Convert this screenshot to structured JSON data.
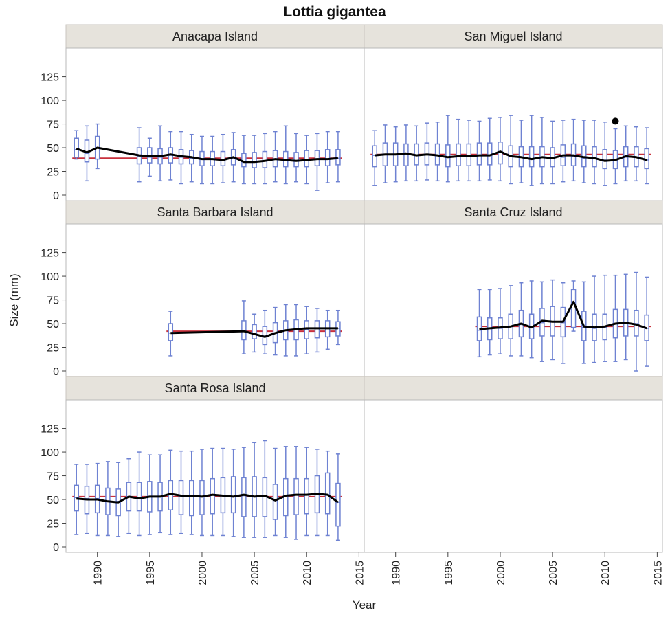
{
  "chart_data": {
    "type": "box",
    "title": "Lottia gigantea",
    "xlabel": "Year",
    "ylabel": "Size (mm)",
    "xlim": [
      1987,
      2015.5
    ],
    "ylim": [
      0,
      145
    ],
    "x_ticks": [
      1990,
      1995,
      2000,
      2005,
      2010,
      2015
    ],
    "y_ticks": [
      0,
      25,
      50,
      75,
      100,
      125
    ],
    "x_tick_labels": [
      "1990",
      "1995",
      "2000",
      "2005",
      "2010",
      "2015"
    ],
    "y_tick_labels": [
      "0",
      "25",
      "50",
      "75",
      "100",
      "125"
    ],
    "colors": {
      "box": "#6e82d2",
      "mean_line": "#000000",
      "overall_mean": "#c8303c",
      "strip_bg": "#e6e3dc",
      "frame": "#9a9a9a"
    },
    "panels": [
      {
        "name": "Anacapa Island",
        "overall_mean": 39,
        "years": [
          1988,
          1989,
          1990,
          1994,
          1995,
          1996,
          1997,
          1998,
          1999,
          2000,
          2001,
          2002,
          2003,
          2004,
          2005,
          2006,
          2007,
          2008,
          2009,
          2010,
          2011,
          2012,
          2013
        ],
        "q1": [
          40,
          35,
          38,
          33,
          34,
          33,
          34,
          33,
          33,
          31,
          31,
          31,
          32,
          30,
          29,
          29,
          30,
          30,
          30,
          30,
          31,
          31,
          32
        ],
        "median": [
          48,
          44,
          50,
          41,
          40,
          40,
          42,
          40,
          39,
          38,
          38,
          37,
          39,
          35,
          35,
          36,
          38,
          37,
          36,
          37,
          38,
          38,
          39
        ],
        "q3": [
          60,
          58,
          62,
          50,
          50,
          49,
          50,
          48,
          47,
          46,
          46,
          46,
          48,
          44,
          45,
          46,
          47,
          46,
          45,
          47,
          47,
          48,
          48
        ],
        "min": [
          38,
          15,
          28,
          14,
          20,
          15,
          16,
          12,
          14,
          12,
          12,
          13,
          14,
          12,
          12,
          12,
          14,
          12,
          14,
          12,
          5,
          13,
          14
        ],
        "max": [
          68,
          73,
          75,
          71,
          60,
          73,
          67,
          67,
          64,
          62,
          62,
          64,
          66,
          63,
          63,
          65,
          67,
          73,
          65,
          63,
          65,
          67,
          67
        ],
        "mean": [
          49,
          45,
          50,
          42,
          41,
          41,
          43,
          41,
          40,
          38,
          38,
          37,
          40,
          35,
          35,
          36,
          38,
          37,
          36,
          37,
          38,
          38,
          39
        ],
        "outliers": []
      },
      {
        "name": "San Miguel Island",
        "overall_mean": 43,
        "years": [
          1988,
          1989,
          1990,
          1991,
          1992,
          1993,
          1994,
          1995,
          1996,
          1997,
          1998,
          1999,
          2000,
          2001,
          2002,
          2003,
          2004,
          2005,
          2006,
          2007,
          2008,
          2009,
          2010,
          2011,
          2012,
          2013,
          2014
        ],
        "q1": [
          30,
          31,
          31,
          31,
          32,
          32,
          32,
          30,
          31,
          31,
          32,
          32,
          33,
          30,
          30,
          30,
          30,
          30,
          31,
          31,
          30,
          30,
          28,
          28,
          30,
          30,
          28
        ],
        "median": [
          42,
          43,
          43,
          43,
          42,
          43,
          42,
          40,
          41,
          41,
          42,
          42,
          45,
          41,
          40,
          38,
          40,
          39,
          40,
          41,
          39,
          39,
          37,
          37,
          40,
          40,
          37
        ],
        "q3": [
          52,
          55,
          55,
          54,
          54,
          55,
          54,
          53,
          54,
          54,
          55,
          55,
          56,
          52,
          51,
          51,
          51,
          50,
          53,
          54,
          52,
          51,
          48,
          47,
          51,
          51,
          49
        ],
        "min": [
          10,
          13,
          14,
          15,
          15,
          16,
          15,
          14,
          15,
          15,
          15,
          16,
          15,
          12,
          13,
          10,
          12,
          12,
          14,
          15,
          13,
          12,
          10,
          12,
          15,
          15,
          12
        ],
        "max": [
          68,
          74,
          72,
          74,
          73,
          76,
          77,
          84,
          80,
          79,
          78,
          81,
          82,
          84,
          79,
          84,
          82,
          78,
          79,
          80,
          79,
          79,
          77,
          70,
          73,
          72,
          71
        ],
        "mean": [
          42,
          43,
          43,
          44,
          42,
          43,
          42,
          40,
          41,
          41,
          42,
          42,
          46,
          41,
          40,
          38,
          40,
          39,
          42,
          42,
          40,
          39,
          36,
          37,
          41,
          40,
          37
        ],
        "outliers": [
          [
            2011,
            78
          ]
        ]
      },
      {
        "name": "Santa Barbara Island",
        "overall_mean": 42,
        "years": [
          1997,
          2004,
          2005,
          2006,
          2007,
          2008,
          2009,
          2010,
          2011,
          2012,
          2013
        ],
        "q1": [
          32,
          33,
          34,
          28,
          30,
          33,
          33,
          34,
          35,
          36,
          37
        ],
        "median": [
          40,
          42,
          39,
          37,
          40,
          43,
          44,
          44,
          45,
          45,
          45
        ],
        "q3": [
          50,
          53,
          49,
          47,
          51,
          53,
          54,
          53,
          53,
          53,
          52
        ],
        "min": [
          16,
          18,
          20,
          18,
          17,
          16,
          16,
          18,
          20,
          23,
          28
        ],
        "max": [
          63,
          74,
          60,
          64,
          67,
          70,
          70,
          68,
          66,
          64,
          64
        ],
        "mean": [
          40,
          42,
          39,
          36,
          40,
          43,
          44,
          45,
          45,
          45,
          45
        ],
        "outliers": []
      },
      {
        "name": "Santa Cruz Island",
        "overall_mean": 47,
        "years": [
          1998,
          1999,
          2000,
          2001,
          2002,
          2003,
          2004,
          2005,
          2006,
          2007,
          2008,
          2009,
          2010,
          2011,
          2012,
          2013,
          2014
        ],
        "q1": [
          32,
          33,
          34,
          34,
          36,
          34,
          37,
          37,
          36,
          46,
          32,
          32,
          33,
          35,
          37,
          37,
          32
        ],
        "median": [
          43,
          45,
          45,
          47,
          49,
          46,
          51,
          52,
          51,
          72,
          46,
          45,
          46,
          50,
          50,
          50,
          45
        ],
        "q3": [
          57,
          56,
          56,
          60,
          64,
          60,
          66,
          68,
          67,
          86,
          63,
          60,
          60,
          65,
          65,
          64,
          59
        ],
        "min": [
          15,
          17,
          18,
          16,
          16,
          14,
          10,
          12,
          8,
          42,
          8,
          9,
          10,
          10,
          12,
          0,
          5
        ],
        "max": [
          86,
          86,
          87,
          90,
          93,
          95,
          94,
          96,
          93,
          95,
          94,
          100,
          101,
          101,
          102,
          104,
          99
        ],
        "mean": [
          44,
          45,
          46,
          47,
          50,
          46,
          53,
          52,
          52,
          73,
          47,
          46,
          47,
          50,
          51,
          49,
          45
        ],
        "outliers": []
      },
      {
        "name": "Santa Rosa Island",
        "overall_mean": 53,
        "years": [
          1988,
          1989,
          1990,
          1991,
          1992,
          1993,
          1994,
          1995,
          1996,
          1997,
          1998,
          1999,
          2000,
          2001,
          2002,
          2003,
          2004,
          2005,
          2006,
          2007,
          2008,
          2009,
          2010,
          2011,
          2012,
          2013
        ],
        "q1": [
          38,
          35,
          36,
          34,
          33,
          38,
          38,
          37,
          38,
          39,
          34,
          33,
          34,
          35,
          36,
          36,
          32,
          32,
          32,
          29,
          33,
          34,
          35,
          36,
          35,
          22
        ],
        "median": [
          52,
          51,
          51,
          48,
          48,
          53,
          51,
          53,
          53,
          56,
          53,
          53,
          53,
          55,
          54,
          53,
          54,
          53,
          53,
          49,
          54,
          55,
          55,
          56,
          55,
          47
        ],
        "q3": [
          65,
          64,
          65,
          62,
          61,
          68,
          68,
          69,
          68,
          70,
          70,
          70,
          70,
          72,
          73,
          74,
          73,
          74,
          73,
          66,
          72,
          72,
          72,
          75,
          78,
          67
        ],
        "min": [
          13,
          14,
          12,
          12,
          11,
          14,
          12,
          13,
          15,
          13,
          14,
          13,
          12,
          12,
          12,
          11,
          10,
          10,
          10,
          12,
          10,
          8,
          12,
          12,
          12,
          7
        ],
        "max": [
          87,
          87,
          88,
          90,
          89,
          93,
          100,
          97,
          97,
          102,
          101,
          101,
          103,
          104,
          104,
          103,
          105,
          110,
          112,
          104,
          106,
          106,
          105,
          103,
          101,
          98
        ],
        "mean": [
          51,
          50,
          50,
          48,
          47,
          53,
          51,
          53,
          53,
          56,
          54,
          54,
          53,
          55,
          54,
          53,
          55,
          53,
          54,
          49,
          54,
          55,
          55,
          56,
          55,
          47
        ],
        "outliers": []
      }
    ]
  }
}
